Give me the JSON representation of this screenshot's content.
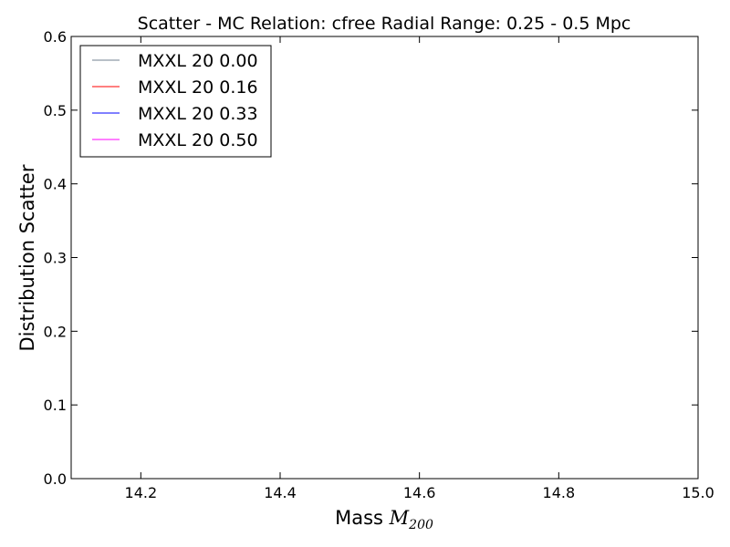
{
  "chart_data": {
    "type": "line",
    "title": "Scatter - MC Relation: cfree Radial Range: 0.25 - 0.5 Mpc",
    "xlabel_text": "Mass ",
    "xlabel_math": "M",
    "xlabel_sub": "200",
    "ylabel": "Distribution Scatter",
    "xlim": [
      14.1,
      15.0
    ],
    "ylim": [
      0.0,
      0.6
    ],
    "xticks": [
      14.2,
      14.4,
      14.6,
      14.8,
      15.0
    ],
    "xtick_labels": [
      "14.2",
      "14.4",
      "14.6",
      "14.8",
      "15.0"
    ],
    "yticks": [
      0.0,
      0.1,
      0.2,
      0.3,
      0.4,
      0.5,
      0.6
    ],
    "ytick_labels": [
      "0.0",
      "0.1",
      "0.2",
      "0.3",
      "0.4",
      "0.5",
      "0.6"
    ],
    "grid": false,
    "legend_position": "upper-left",
    "series": [
      {
        "name": "MXXL 20 0.00",
        "color": "#708090",
        "x": [],
        "y": []
      },
      {
        "name": "MXXL 20 0.16",
        "color": "#ff0000",
        "x": [],
        "y": []
      },
      {
        "name": "MXXL 20 0.33",
        "color": "#0000ff",
        "x": [],
        "y": []
      },
      {
        "name": "MXXL 20 0.50",
        "color": "#ff00ff",
        "x": [],
        "y": []
      }
    ]
  }
}
